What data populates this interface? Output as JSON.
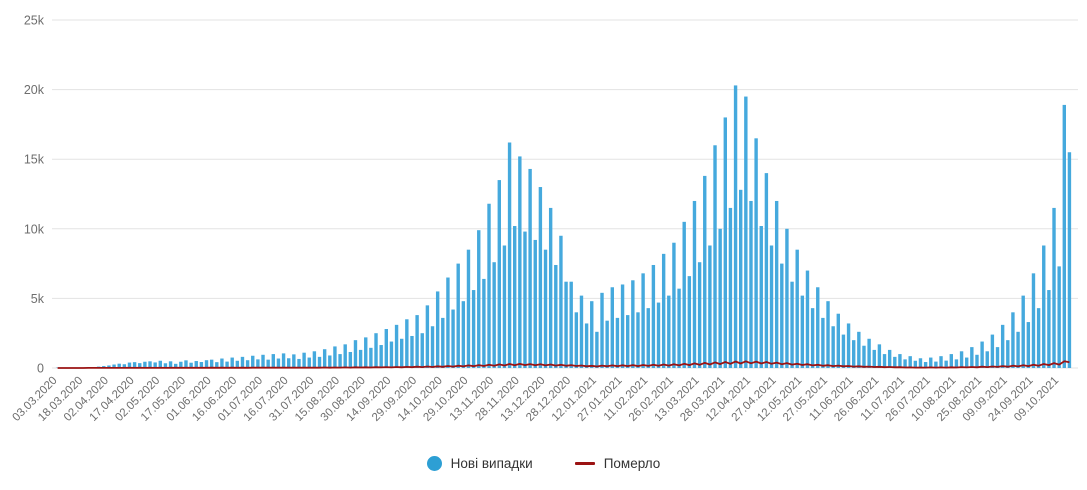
{
  "colors": {
    "bar_blue": "#45a9dd",
    "legend_dot_blue": "#2d9fd4",
    "line_red": "#9b1313",
    "grid": "#e3e3e3",
    "axis_text": "#6e6e6e",
    "legend_text": "#333333",
    "background": "#ffffff"
  },
  "y_axis": {
    "ticks": [
      "0",
      "5k",
      "10k",
      "15k",
      "20k",
      "25k"
    ],
    "max": 25000
  },
  "x_axis": {
    "start_date": "03.03.2020",
    "point_step_days": 3,
    "tick_every_points": 5,
    "tick_labels": [
      "03.03.2020",
      "18.03.2020",
      "02.04.2020",
      "17.04.2020",
      "02.05.2020",
      "17.05.2020",
      "01.06.2020",
      "16.06.2020",
      "01.07.2020",
      "16.07.2020",
      "31.07.2020",
      "15.08.2020",
      "30.08.2020",
      "14.09.2020",
      "29.09.2020",
      "14.10.2020",
      "29.10.2020",
      "13.11.2020",
      "28.11.2020",
      "13.12.2020",
      "28.12.2020",
      "12.01.2021",
      "27.01.2021",
      "11.02.2021",
      "26.02.2021",
      "13.03.2021",
      "28.03.2021",
      "12.04.2021",
      "27.04.2021",
      "12.05.2021",
      "27.05.2021",
      "11.06.2021",
      "26.06.2021",
      "11.07.2021",
      "26.07.2021",
      "10.08.2021",
      "25.08.2021",
      "09.09.2021",
      "24.09.2021",
      "09.10.2021"
    ]
  },
  "legend": {
    "items": [
      {
        "label": "Нові випадки",
        "swatch": "dot",
        "color": "#2d9fd4"
      },
      {
        "label": "Померло",
        "swatch": "line",
        "color": "#9b1313"
      }
    ]
  },
  "chart_data": {
    "type": "bar",
    "title": "",
    "xlabel": "",
    "ylabel": "",
    "ylim": [
      0,
      25000
    ],
    "grid": "horizontal",
    "legend_position": "bottom-center",
    "x_start": "03.03.2020",
    "x_step_days": 3,
    "series": [
      {
        "name": "Нові випадки",
        "type": "bar",
        "color": "#45a9dd",
        "values": [
          1,
          2,
          5,
          10,
          18,
          30,
          45,
          70,
          100,
          140,
          180,
          250,
          310,
          270,
          390,
          420,
          350,
          450,
          480,
          400,
          520,
          340,
          480,
          300,
          450,
          550,
          380,
          500,
          430,
          560,
          600,
          420,
          680,
          460,
          750,
          520,
          800,
          560,
          880,
          620,
          950,
          600,
          1000,
          680,
          1050,
          700,
          980,
          650,
          1100,
          750,
          1200,
          800,
          1350,
          900,
          1550,
          1000,
          1700,
          1150,
          2000,
          1300,
          2200,
          1450,
          2500,
          1650,
          2800,
          1900,
          3100,
          2100,
          3500,
          2300,
          3800,
          2500,
          4500,
          3000,
          5500,
          3600,
          6500,
          4200,
          7500,
          4800,
          8500,
          5600,
          9900,
          6400,
          11800,
          7600,
          13500,
          8800,
          16200,
          10200,
          15200,
          9800,
          14300,
          9200,
          13000,
          8500,
          11500,
          7400,
          9500,
          6200,
          6200,
          4000,
          5200,
          3200,
          4800,
          2600,
          5400,
          3400,
          5800,
          3600,
          6000,
          3800,
          6300,
          4000,
          6800,
          4300,
          7400,
          4700,
          8200,
          5200,
          9000,
          5700,
          10500,
          6600,
          12000,
          7600,
          13800,
          8800,
          16000,
          10000,
          18000,
          11500,
          20300,
          12800,
          19500,
          12000,
          16500,
          10200,
          14000,
          8800,
          12000,
          7500,
          10000,
          6200,
          8500,
          5200,
          7000,
          4300,
          5800,
          3600,
          4800,
          3000,
          3900,
          2400,
          3200,
          2000,
          2600,
          1600,
          2100,
          1300,
          1700,
          1000,
          1300,
          800,
          1000,
          620,
          850,
          520,
          700,
          430,
          750,
          460,
          850,
          530,
          1000,
          620,
          1200,
          750,
          1500,
          950,
          1900,
          1200,
          2400,
          1500,
          3100,
          2000,
          4000,
          2600,
          5200,
          3300,
          6800,
          4300,
          8800,
          5600,
          11500,
          7300,
          18900,
          15500
        ]
      },
      {
        "name": "Померло",
        "type": "line",
        "color": "#9b1313",
        "values": [
          0,
          0,
          1,
          1,
          2,
          3,
          4,
          5,
          6,
          8,
          9,
          7,
          10,
          8,
          11,
          9,
          12,
          10,
          13,
          10,
          14,
          10,
          15,
          11,
          16,
          12,
          15,
          11,
          16,
          12,
          18,
          13,
          20,
          14,
          22,
          16,
          23,
          17,
          25,
          18,
          26,
          19,
          28,
          20,
          29,
          21,
          28,
          20,
          30,
          22,
          32,
          23,
          35,
          25,
          38,
          27,
          42,
          30,
          48,
          34,
          52,
          37,
          58,
          41,
          65,
          46,
          72,
          51,
          80,
          56,
          90,
          63,
          105,
          74,
          125,
          88,
          145,
          100,
          165,
          115,
          185,
          130,
          210,
          145,
          235,
          165,
          260,
          180,
          285,
          200,
          295,
          205,
          280,
          195,
          265,
          185,
          250,
          175,
          230,
          160,
          210,
          145,
          180,
          125,
          160,
          110,
          170,
          120,
          185,
          130,
          195,
          135,
          205,
          140,
          215,
          150,
          230,
          160,
          250,
          175,
          270,
          190,
          300,
          210,
          330,
          230,
          365,
          255,
          400,
          280,
          430,
          300,
          465,
          325,
          480,
          335,
          460,
          320,
          430,
          300,
          390,
          270,
          350,
          245,
          310,
          215,
          270,
          190,
          230,
          160,
          200,
          140,
          170,
          120,
          145,
          100,
          120,
          85,
          100,
          70,
          85,
          60,
          70,
          48,
          55,
          38,
          45,
          32,
          38,
          27,
          40,
          28,
          45,
          32,
          52,
          36,
          62,
          43,
          75,
          52,
          90,
          63,
          110,
          77,
          135,
          95,
          165,
          115,
          200,
          140,
          240,
          168,
          290,
          205,
          350,
          245,
          480,
          420
        ]
      }
    ]
  }
}
